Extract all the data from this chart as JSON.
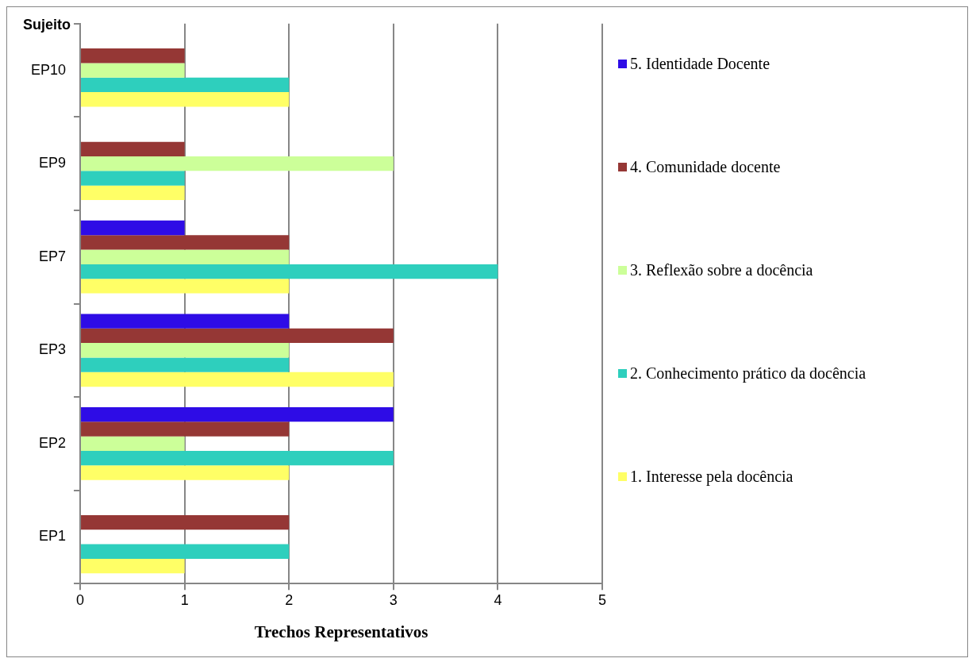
{
  "chart_data": {
    "type": "bar",
    "orientation": "horizontal",
    "xlabel": "Trechos Representativos",
    "ylabel": "Sujeito",
    "categories": [
      "EP10",
      "EP9",
      "EP7",
      "EP3",
      "EP2",
      "EP1"
    ],
    "series": [
      {
        "name": "5. Identidade Docente",
        "color": "#2e0ce6",
        "values": [
          null,
          null,
          1,
          2,
          3,
          null
        ]
      },
      {
        "name": "4. Comunidade docente",
        "color": "#953735",
        "values": [
          1,
          1,
          2,
          3,
          2,
          2
        ]
      },
      {
        "name": "3. Reflexão sobre a docência",
        "color": "#ccff99",
        "values": [
          1,
          3,
          2,
          2,
          1,
          null
        ]
      },
      {
        "name": "2. Conhecimento prático da docência",
        "color": "#2ecfbd",
        "values": [
          2,
          1,
          4,
          2,
          3,
          2
        ]
      },
      {
        "name": "1. Interesse pela docência",
        "color": "#ffff66",
        "values": [
          2,
          1,
          2,
          3,
          2,
          1
        ]
      }
    ],
    "xlim": [
      0,
      5
    ],
    "xticks": [
      0,
      1,
      2,
      3,
      4,
      5
    ],
    "grid": "x",
    "legend": "right"
  }
}
